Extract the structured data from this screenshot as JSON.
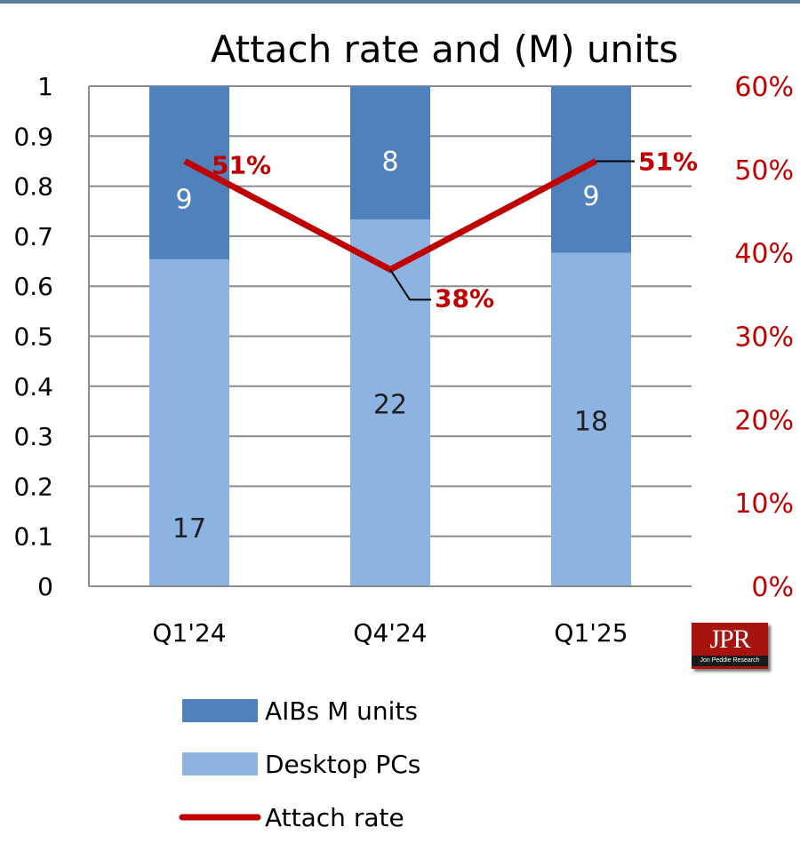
{
  "chart_data": {
    "type": "bar",
    "title": "Attach rate and (M) units",
    "categories": [
      "Q1'24",
      "Q4'24",
      "Q1'25"
    ],
    "series": [
      {
        "name": "Desktop PCs",
        "kind": "stacked-bar",
        "axis": "left",
        "values": [
          17,
          22,
          18
        ],
        "color": "#8db3e2"
      },
      {
        "name": "AIBs M units",
        "kind": "stacked-bar",
        "axis": "left",
        "values": [
          9,
          8,
          9
        ],
        "color": "#4f81bd"
      },
      {
        "name": "Attach rate",
        "kind": "line",
        "axis": "right",
        "values": [
          0.51,
          0.38,
          0.51
        ],
        "labels": [
          "51%",
          "38%",
          "51%"
        ],
        "color": "#c00000"
      }
    ],
    "y_left": {
      "range": [
        0,
        1
      ],
      "ticks": [
        "0",
        "0.1",
        "0.2",
        "0.3",
        "0.4",
        "0.5",
        "0.6",
        "0.7",
        "0.8",
        "0.9",
        "1"
      ]
    },
    "y_right": {
      "range": [
        0,
        0.6
      ],
      "ticks": [
        "0%",
        "10%",
        "20%",
        "30%",
        "40%",
        "50%",
        "60%"
      ],
      "color": "#c00000"
    },
    "grid": true,
    "legend_position": "bottom-left",
    "stack_normalized": true
  },
  "logo": {
    "main": "JPR",
    "sub": "Jon Peddie Research"
  }
}
